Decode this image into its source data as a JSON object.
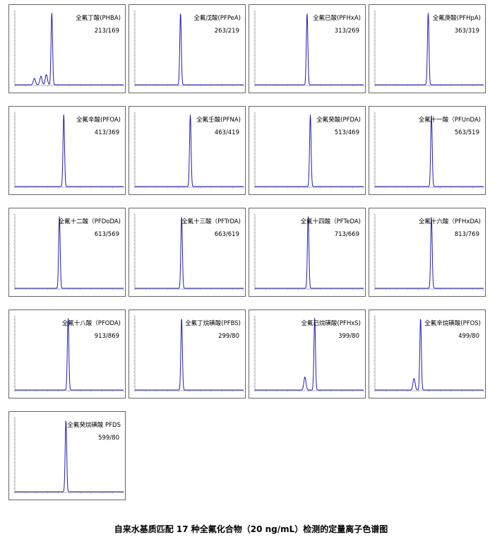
{
  "caption": "自来水基质匹配 17 种全氟化合物（20 ng/mL）检测的定量离子色谱图",
  "colors": {
    "trace": "#1f1fb4",
    "frame": "#666666"
  },
  "chart_data": [
    {
      "type": "line",
      "title": "全氟丁酸(PHBA)",
      "subtitle": "213/169",
      "peak": 0.34,
      "side": [
        [
          0.18,
          0.09
        ],
        [
          0.24,
          0.12
        ],
        [
          0.29,
          0.14
        ]
      ]
    },
    {
      "type": "line",
      "title": "全氟戊酸(PFPeA)",
      "subtitle": "263/219",
      "peak": 0.42,
      "side": []
    },
    {
      "type": "line",
      "title": "全氟已酸(PFHxA)",
      "subtitle": "313/269",
      "peak": 0.48,
      "side": []
    },
    {
      "type": "line",
      "title": "全氟庚酸(PFHpA)",
      "subtitle": "363/319",
      "peak": 0.49,
      "side": []
    },
    {
      "type": "line",
      "title": "全氟辛酸(PFOA)",
      "subtitle": "413/369",
      "peak": 0.45,
      "side": []
    },
    {
      "type": "line",
      "title": "全氟壬酸(PFNA)",
      "subtitle": "463/419",
      "peak": 0.51,
      "side": []
    },
    {
      "type": "line",
      "title": "全氟癸酸(PFDA)",
      "subtitle": "513/469",
      "peak": 0.51,
      "side": []
    },
    {
      "type": "line",
      "title": "全氟十一酸（PFUnDA)",
      "subtitle": "563/519",
      "peak": 0.52,
      "side": []
    },
    {
      "type": "line",
      "title": "全氟十二酸（PFDoDA)",
      "subtitle": "613/569",
      "peak": 0.41,
      "side": []
    },
    {
      "type": "line",
      "title": "全氟十三酸（PFTrDA)",
      "subtitle": "663/619",
      "peak": 0.43,
      "side": []
    },
    {
      "type": "line",
      "title": "全氟十四酸（PFTeDA)",
      "subtitle": "713/669",
      "peak": 0.49,
      "side": []
    },
    {
      "type": "line",
      "title": "全氟十六酸（PFHxDA)",
      "subtitle": "813/769",
      "peak": 0.52,
      "side": []
    },
    {
      "type": "line",
      "title": "全氟十八酸（PFODA)",
      "subtitle": "913/869",
      "peak": 0.49,
      "side": []
    },
    {
      "type": "line",
      "title": "全氟丁烷磺酸(PFBS)",
      "subtitle": "299/80",
      "peak": 0.43,
      "side": []
    },
    {
      "type": "line",
      "title": "全氟已烷磺酸(PFHxS)",
      "subtitle": "399/80",
      "peak": 0.55,
      "side": [
        [
          0.46,
          0.18
        ]
      ]
    },
    {
      "type": "line",
      "title": "全氟辛烷磺酸(PFOS)",
      "subtitle": "499/80",
      "peak": 0.42,
      "side": [
        [
          0.36,
          0.16
        ]
      ]
    },
    {
      "type": "line",
      "title": "全氟癸烷磺酸 PFDS",
      "subtitle": "599/80",
      "peak": 0.47,
      "side": []
    }
  ]
}
